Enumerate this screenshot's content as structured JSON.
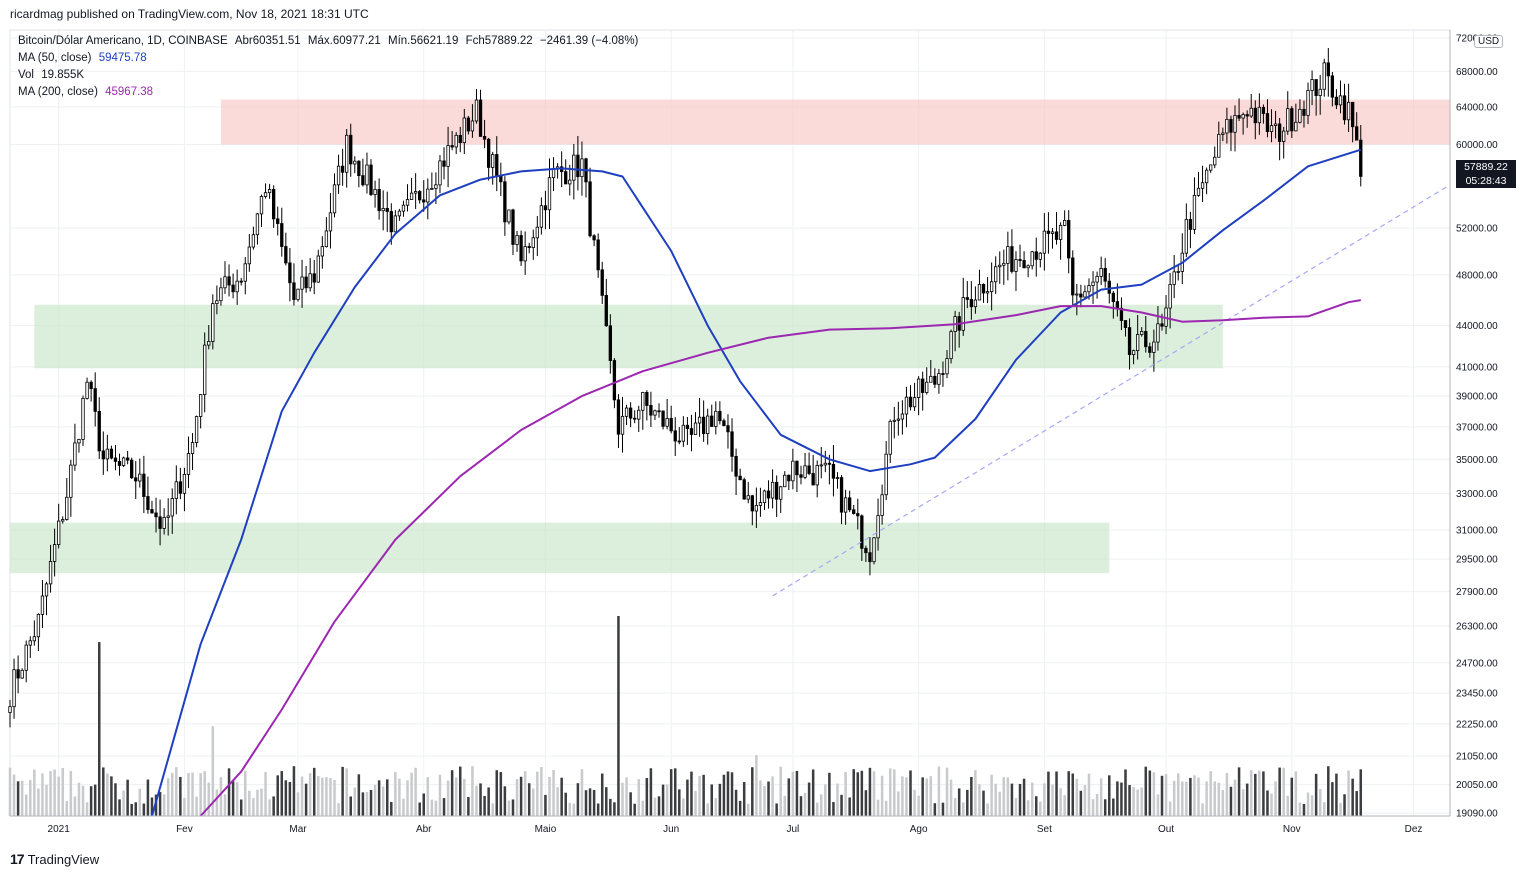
{
  "header": {
    "published": "ricardmag published on TradingView.com, Nov 18, 2021 18:31 UTC"
  },
  "legend": {
    "symbol": "Bitcoin/Dólar Americano, 1D, COINBASE",
    "open": "Abr60351.51",
    "high": "Máx.60977.21",
    "low": "Mín.56621.19",
    "close": "Fch57889.22",
    "change": "−2461.39 (−4.08%)",
    "ma50_label": "MA (50, close)",
    "ma50_value": "59475.78",
    "vol_label": "Vol",
    "vol_value": "19.855K",
    "ma200_label": "MA (200, close)",
    "ma200_value": "45967.38"
  },
  "price_badge": {
    "price": "57889.22",
    "countdown": "05:28:43"
  },
  "currency": "USD",
  "footer": {
    "brand": "TradingView"
  },
  "colors": {
    "up": "#ffffff",
    "down": "#000000",
    "ma50": "#1e3fc0",
    "ma200": "#9c27b0",
    "resistance": "#f8c8c4",
    "support": "#c8e6c9",
    "trend": "#a4a8f5"
  },
  "chart_data": {
    "type": "candlestick",
    "title": "Bitcoin/Dólar Americano, 1D, COINBASE",
    "y_scale": "log",
    "y_ticks": [
      "72000.00",
      "68000.00",
      "64000.00",
      "60000.00",
      "52000.00",
      "48000.00",
      "44000.00",
      "41000.00",
      "39000.00",
      "37000.00",
      "35000.00",
      "33000.00",
      "31000.00",
      "29500.00",
      "27900.00",
      "26300.00",
      "24700.00",
      "23450.00",
      "22250.00",
      "21050.00",
      "20050.00",
      "19090.00"
    ],
    "x_ticks": [
      "2021",
      "Fev",
      "Mar",
      "Abr",
      "Maio",
      "Jun",
      "Jul",
      "Ago",
      "Set",
      "Out",
      "Nov",
      "Dez"
    ],
    "x_range": [
      "2020-12-20",
      "2021-12-10"
    ],
    "y_range": [
      19000,
      73000
    ],
    "zones": [
      {
        "kind": "resistance",
        "from": "2021-02-10",
        "to": "2021-12-10",
        "low": 60000,
        "high": 64800
      },
      {
        "kind": "support",
        "from": "2020-12-26",
        "to": "2021-10-15",
        "low": 40900,
        "high": 45600
      },
      {
        "kind": "support",
        "from": "2020-12-20",
        "to": "2021-09-17",
        "low": 28800,
        "high": 31400
      }
    ],
    "trendline": {
      "from": [
        "2021-06-26",
        27700
      ],
      "to": [
        "2021-12-10",
        56000
      ]
    },
    "series": [
      {
        "name": "MA (50, close)",
        "points": [
          [
            "2021-01-24",
            19000
          ],
          [
            "2021-02-05",
            25500
          ],
          [
            "2021-02-15",
            30500
          ],
          [
            "2021-02-25",
            38000
          ],
          [
            "2021-03-05",
            42000
          ],
          [
            "2021-03-15",
            47000
          ],
          [
            "2021-03-25",
            51500
          ],
          [
            "2021-04-05",
            55000
          ],
          [
            "2021-04-15",
            56500
          ],
          [
            "2021-04-25",
            57300
          ],
          [
            "2021-05-05",
            57600
          ],
          [
            "2021-05-15",
            57300
          ],
          [
            "2021-05-20",
            56800
          ],
          [
            "2021-06-01",
            50000
          ],
          [
            "2021-06-10",
            44000
          ],
          [
            "2021-06-18",
            40000
          ],
          [
            "2021-06-28",
            36500
          ],
          [
            "2021-07-10",
            35000
          ],
          [
            "2021-07-20",
            34300
          ],
          [
            "2021-07-30",
            34700
          ],
          [
            "2021-08-05",
            35100
          ],
          [
            "2021-08-15",
            37500
          ],
          [
            "2021-08-25",
            41500
          ],
          [
            "2021-09-05",
            45000
          ],
          [
            "2021-09-15",
            46800
          ],
          [
            "2021-09-25",
            47200
          ],
          [
            "2021-10-05",
            49000
          ],
          [
            "2021-10-15",
            51800
          ],
          [
            "2021-10-25",
            54500
          ],
          [
            "2021-11-05",
            57800
          ],
          [
            "2021-11-18",
            59475
          ]
        ]
      },
      {
        "name": "MA (200, close)",
        "points": [
          [
            "2021-02-05",
            19000
          ],
          [
            "2021-02-15",
            20500
          ],
          [
            "2021-02-25",
            22800
          ],
          [
            "2021-03-10",
            26500
          ],
          [
            "2021-03-25",
            30500
          ],
          [
            "2021-04-10",
            34000
          ],
          [
            "2021-04-25",
            36800
          ],
          [
            "2021-05-10",
            39000
          ],
          [
            "2021-05-25",
            40700
          ],
          [
            "2021-06-10",
            42000
          ],
          [
            "2021-06-25",
            43100
          ],
          [
            "2021-07-10",
            43700
          ],
          [
            "2021-07-25",
            43800
          ],
          [
            "2021-08-10",
            44100
          ],
          [
            "2021-08-25",
            44800
          ],
          [
            "2021-09-05",
            45500
          ],
          [
            "2021-09-15",
            45500
          ],
          [
            "2021-09-25",
            45000
          ],
          [
            "2021-10-05",
            44300
          ],
          [
            "2021-10-15",
            44400
          ],
          [
            "2021-10-25",
            44600
          ],
          [
            "2021-11-05",
            44700
          ],
          [
            "2021-11-15",
            45800
          ],
          [
            "2021-11-18",
            45967
          ]
        ]
      }
    ],
    "close_path": [
      [
        "2020-12-20",
        23500
      ],
      [
        "2020-12-27",
        26500
      ],
      [
        "2021-01-03",
        33000
      ],
      [
        "2021-01-08",
        40000
      ],
      [
        "2021-01-12",
        35000
      ],
      [
        "2021-01-20",
        34000
      ],
      [
        "2021-01-27",
        31000
      ],
      [
        "2021-02-03",
        36000
      ],
      [
        "2021-02-08",
        46000
      ],
      [
        "2021-02-15",
        48000
      ],
      [
        "2021-02-21",
        56000
      ],
      [
        "2021-02-28",
        46000
      ],
      [
        "2021-03-05",
        48000
      ],
      [
        "2021-03-13",
        60000
      ],
      [
        "2021-03-25",
        52000
      ],
      [
        "2021-04-05",
        58000
      ],
      [
        "2021-04-14",
        63500
      ],
      [
        "2021-04-25",
        49000
      ],
      [
        "2021-05-03",
        57000
      ],
      [
        "2021-05-10",
        58000
      ],
      [
        "2021-05-13",
        50000
      ],
      [
        "2021-05-19",
        37000
      ],
      [
        "2021-05-25",
        38500
      ],
      [
        "2021-06-05",
        36000
      ],
      [
        "2021-06-12",
        38000
      ],
      [
        "2021-06-21",
        32000
      ],
      [
        "2021-07-01",
        34500
      ],
      [
        "2021-07-10",
        34000
      ],
      [
        "2021-07-20",
        30000
      ],
      [
        "2021-07-26",
        38000
      ],
      [
        "2021-08-05",
        40000
      ],
      [
        "2021-08-13",
        46000
      ],
      [
        "2021-08-22",
        49000
      ],
      [
        "2021-09-06",
        51500
      ],
      [
        "2021-09-08",
        46000
      ],
      [
        "2021-09-15",
        48000
      ],
      [
        "2021-09-22",
        42000
      ],
      [
        "2021-09-30",
        43500
      ],
      [
        "2021-10-06",
        52000
      ],
      [
        "2021-10-15",
        61000
      ],
      [
        "2021-10-21",
        64000
      ],
      [
        "2021-10-28",
        61000
      ],
      [
        "2021-11-02",
        63500
      ],
      [
        "2021-11-09",
        67500
      ],
      [
        "2021-11-15",
        63500
      ],
      [
        "2021-11-18",
        57889
      ]
    ],
    "volume_peaks": [
      [
        "2021-01-11",
        60000
      ],
      [
        "2021-02-08",
        31000
      ],
      [
        "2021-05-19",
        69000
      ],
      [
        "2021-06-22",
        21000
      ]
    ]
  }
}
